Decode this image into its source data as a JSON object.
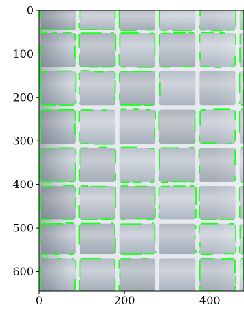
{
  "image": {
    "subject": "grid-of-square-tiles-with-green-edge-detections",
    "tile_color": "#c5cad1",
    "grout_color": "#eef1f4",
    "overlay_color": "#1dff1d",
    "axis_color": "#000000"
  },
  "axes": {
    "x": {
      "ticks": [
        0,
        200,
        400
      ],
      "tick_labels": [
        "0",
        "200",
        "400"
      ],
      "range": [
        0,
        480
      ]
    },
    "y": {
      "ticks": [
        0,
        100,
        200,
        300,
        400,
        500,
        600
      ],
      "tick_labels": [
        "0",
        "100",
        "200",
        "300",
        "400",
        "500",
        "600"
      ],
      "range": [
        0,
        645
      ]
    }
  }
}
